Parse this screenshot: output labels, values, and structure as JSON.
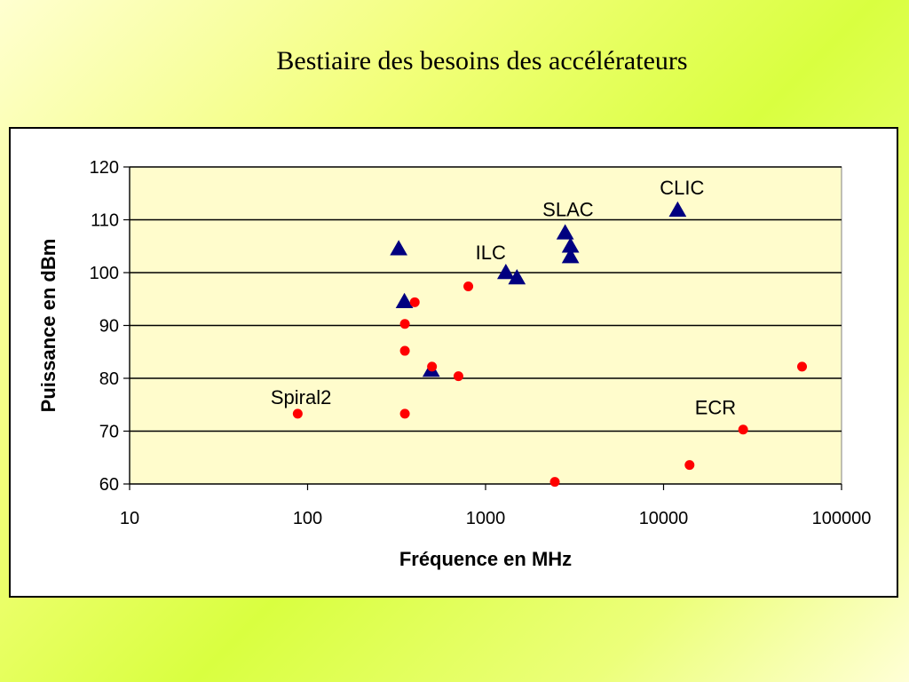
{
  "title": "Bestiaire des besoins des accélérateurs",
  "chart_data": {
    "type": "scatter",
    "xlabel": "Fréquence en MHz",
    "ylabel": "Puissance en dBm",
    "x_scale": "log",
    "xlim": [
      10,
      100000
    ],
    "ylim": [
      60,
      120
    ],
    "x_ticks": [
      "10",
      "100",
      "1000",
      "10000",
      "100000"
    ],
    "y_ticks": [
      "60",
      "70",
      "80",
      "90",
      "100",
      "110",
      "120"
    ],
    "grid": "horizontal",
    "plot_background": "#fffccc",
    "series": [
      {
        "marker": "triangle",
        "color": "#000080",
        "points": [
          {
            "x": 325,
            "y": 104.5
          },
          {
            "x": 350,
            "y": 94.5
          },
          {
            "x": 495,
            "y": 81.5
          },
          {
            "x": 1300,
            "y": 100
          },
          {
            "x": 1500,
            "y": 99
          },
          {
            "x": 2800,
            "y": 107.5
          },
          {
            "x": 3000,
            "y": 105
          },
          {
            "x": 3000,
            "y": 103
          },
          {
            "x": 12000,
            "y": 111.8
          }
        ]
      },
      {
        "marker": "circle",
        "color": "#ff0000",
        "points": [
          {
            "x": 88,
            "y": 73.3
          },
          {
            "x": 352,
            "y": 73.3
          },
          {
            "x": 352,
            "y": 85.2
          },
          {
            "x": 352,
            "y": 90.3
          },
          {
            "x": 400,
            "y": 94.4
          },
          {
            "x": 500,
            "y": 82.2
          },
          {
            "x": 704,
            "y": 80.4
          },
          {
            "x": 800,
            "y": 97.4
          },
          {
            "x": 2450,
            "y": 60.4
          },
          {
            "x": 14000,
            "y": 63.6
          },
          {
            "x": 28000,
            "y": 70.3
          },
          {
            "x": 60000,
            "y": 82.2
          }
        ]
      }
    ],
    "annotations": [
      {
        "text": "CLIC",
        "x": 12000,
        "y": 111.8
      },
      {
        "text": "SLAC",
        "x": 2800,
        "y": 107.5
      },
      {
        "text": "ILC",
        "x": 1300,
        "y": 100
      },
      {
        "text": "Spiral2",
        "x": 88,
        "y": 73.3
      },
      {
        "text": "ECR",
        "x": 28000,
        "y": 70.3
      }
    ]
  }
}
